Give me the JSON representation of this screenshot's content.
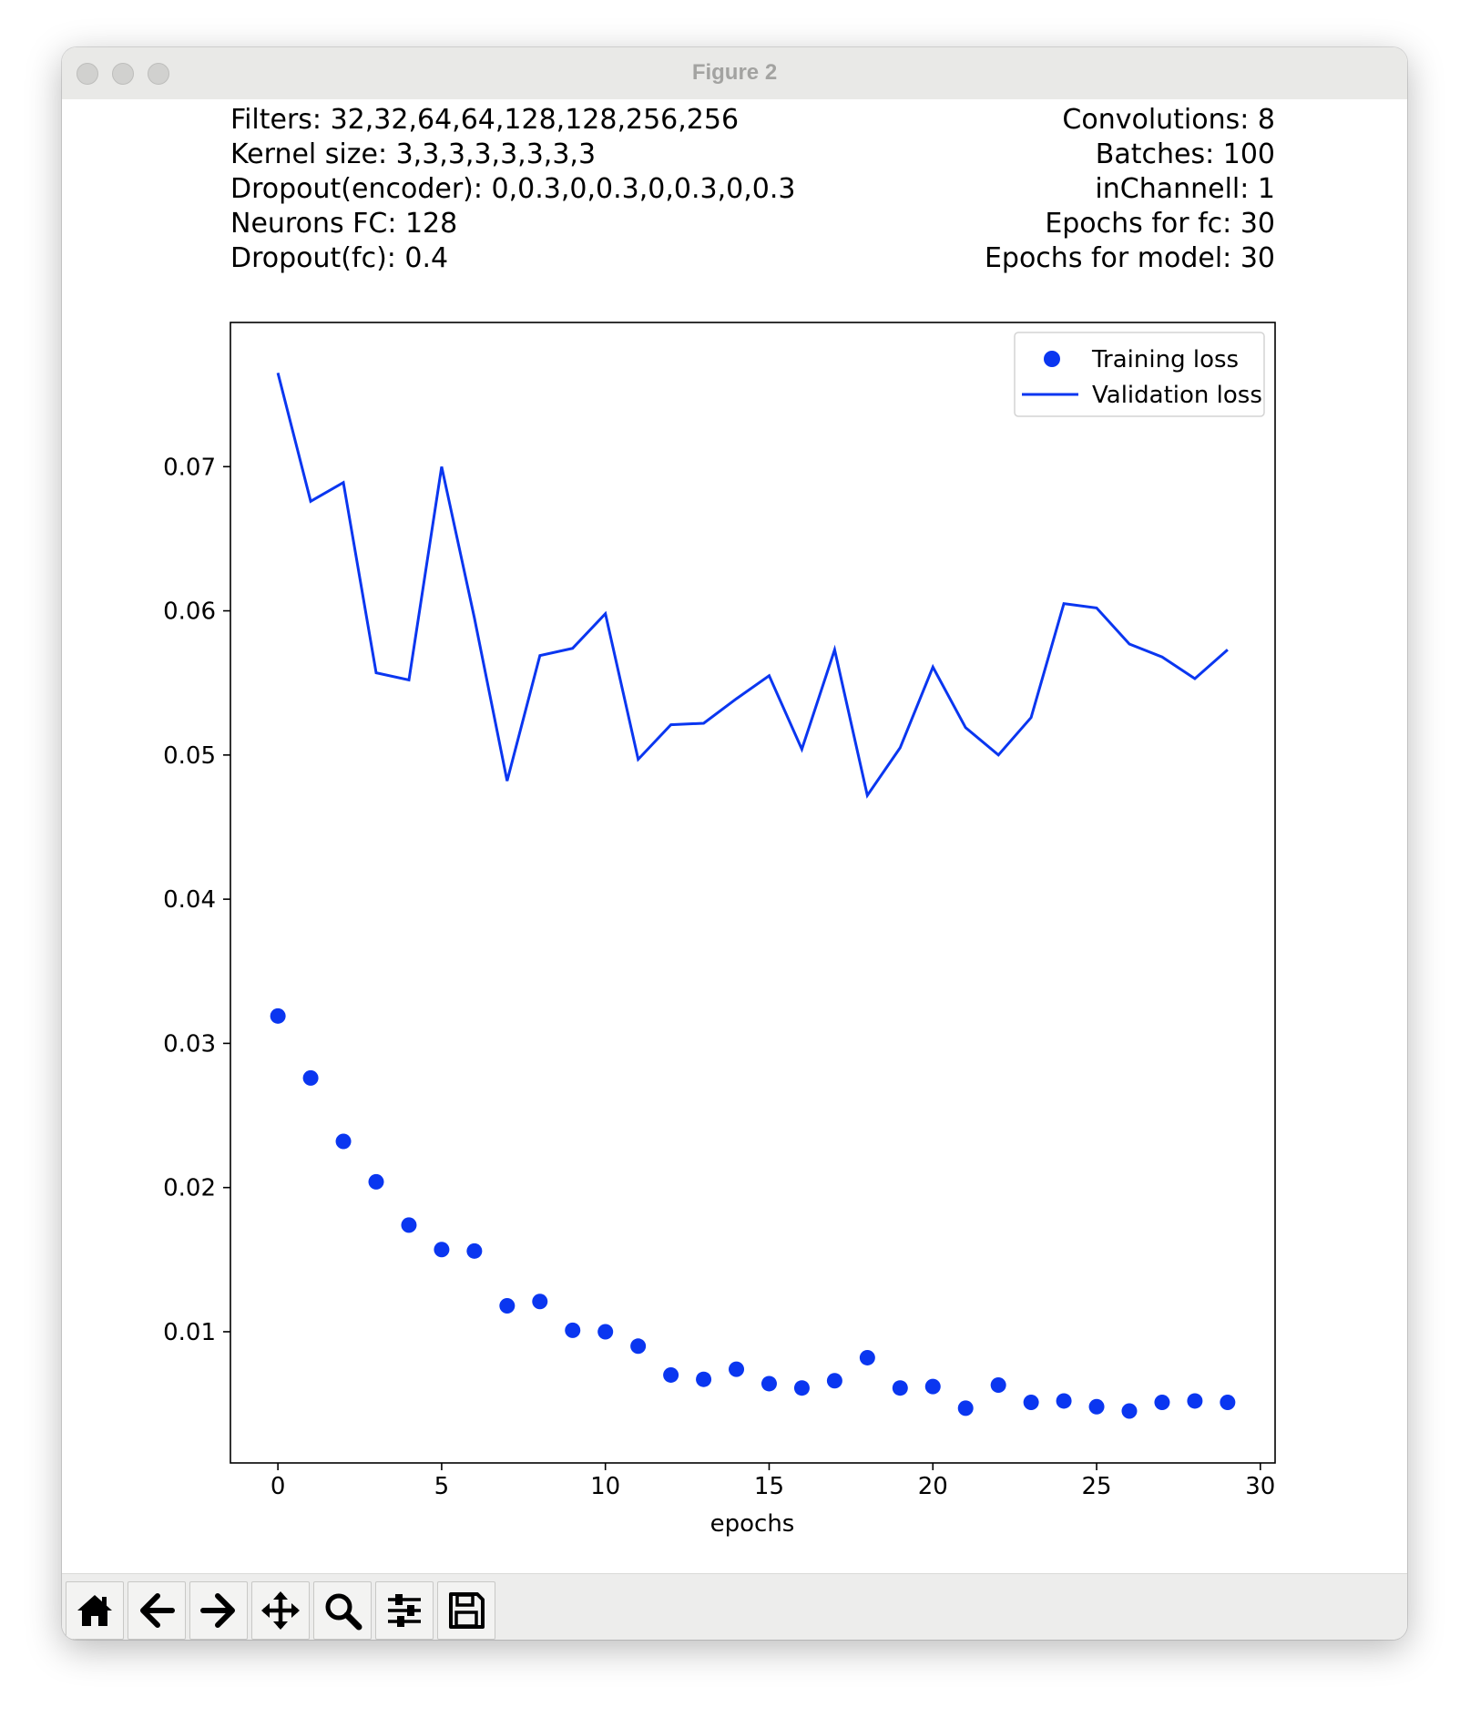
{
  "window": {
    "title": "Figure 2"
  },
  "info": {
    "left": [
      "Filters: 32,32,64,64,128,128,256,256",
      "Kernel size: 3,3,3,3,3,3,3,3",
      "Dropout(encoder): 0,0.3,0,0.3,0,0.3,0,0.3",
      "Neurons FC: 128",
      "Dropout(fc): 0.4"
    ],
    "right": [
      "Convolutions: 8",
      "Batches: 100",
      "inChannell: 1",
      "Epochs for fc: 30",
      "Epochs for model: 30"
    ]
  },
  "toolbar": {
    "buttons": [
      {
        "name": "home-button",
        "icon": "home-icon"
      },
      {
        "name": "back-button",
        "icon": "arrow-left-icon"
      },
      {
        "name": "forward-button",
        "icon": "arrow-right-icon"
      },
      {
        "name": "pan-button",
        "icon": "move-icon"
      },
      {
        "name": "zoom-button",
        "icon": "magnifier-icon"
      },
      {
        "name": "configure-subplots-button",
        "icon": "sliders-icon"
      },
      {
        "name": "save-button",
        "icon": "floppy-disk-icon"
      }
    ]
  },
  "chart_data": {
    "type": "line",
    "title": "",
    "xlabel": "epochs",
    "ylabel": "",
    "xlim": [
      -1.45,
      30.45
    ],
    "ylim": [
      0.0009,
      0.08
    ],
    "x_ticks": [
      0,
      5,
      10,
      15,
      20,
      25,
      30
    ],
    "y_ticks": [
      0.01,
      0.02,
      0.03,
      0.04,
      0.05,
      0.06,
      0.07
    ],
    "y_tick_labels": [
      "0.01",
      "0.02",
      "0.03",
      "0.04",
      "0.05",
      "0.06",
      "0.07"
    ],
    "grid": false,
    "legend": "top-right",
    "color": "#0a36f0",
    "series": [
      {
        "name": "Training loss",
        "style": "dots",
        "x": [
          0,
          1,
          2,
          3,
          4,
          5,
          6,
          7,
          8,
          9,
          10,
          11,
          12,
          13,
          14,
          15,
          16,
          17,
          18,
          19,
          20,
          21,
          22,
          23,
          24,
          25,
          26,
          27,
          28,
          29
        ],
        "values": [
          0.0319,
          0.0276,
          0.0232,
          0.0204,
          0.0174,
          0.0157,
          0.0156,
          0.0118,
          0.0121,
          0.0101,
          0.01,
          0.009,
          0.007,
          0.0067,
          0.0074,
          0.0064,
          0.0061,
          0.0066,
          0.0082,
          0.0061,
          0.0062,
          0.0047,
          0.0063,
          0.0051,
          0.0052,
          0.0048,
          0.0045,
          0.0051,
          0.0052,
          0.0051
        ]
      },
      {
        "name": "Validation loss",
        "style": "line",
        "x": [
          0,
          1,
          2,
          3,
          4,
          5,
          6,
          7,
          8,
          9,
          10,
          11,
          12,
          13,
          14,
          15,
          16,
          17,
          18,
          19,
          20,
          21,
          22,
          23,
          24,
          25,
          26,
          27,
          28,
          29
        ],
        "values": [
          0.0765,
          0.0676,
          0.0689,
          0.0557,
          0.0552,
          0.07,
          0.0595,
          0.0482,
          0.0569,
          0.0574,
          0.0598,
          0.0497,
          0.0521,
          0.0522,
          0.0539,
          0.0555,
          0.0504,
          0.0573,
          0.0472,
          0.0505,
          0.0561,
          0.0519,
          0.05,
          0.0526,
          0.0605,
          0.0602,
          0.0577,
          0.0568,
          0.0553,
          0.0573
        ]
      }
    ]
  }
}
